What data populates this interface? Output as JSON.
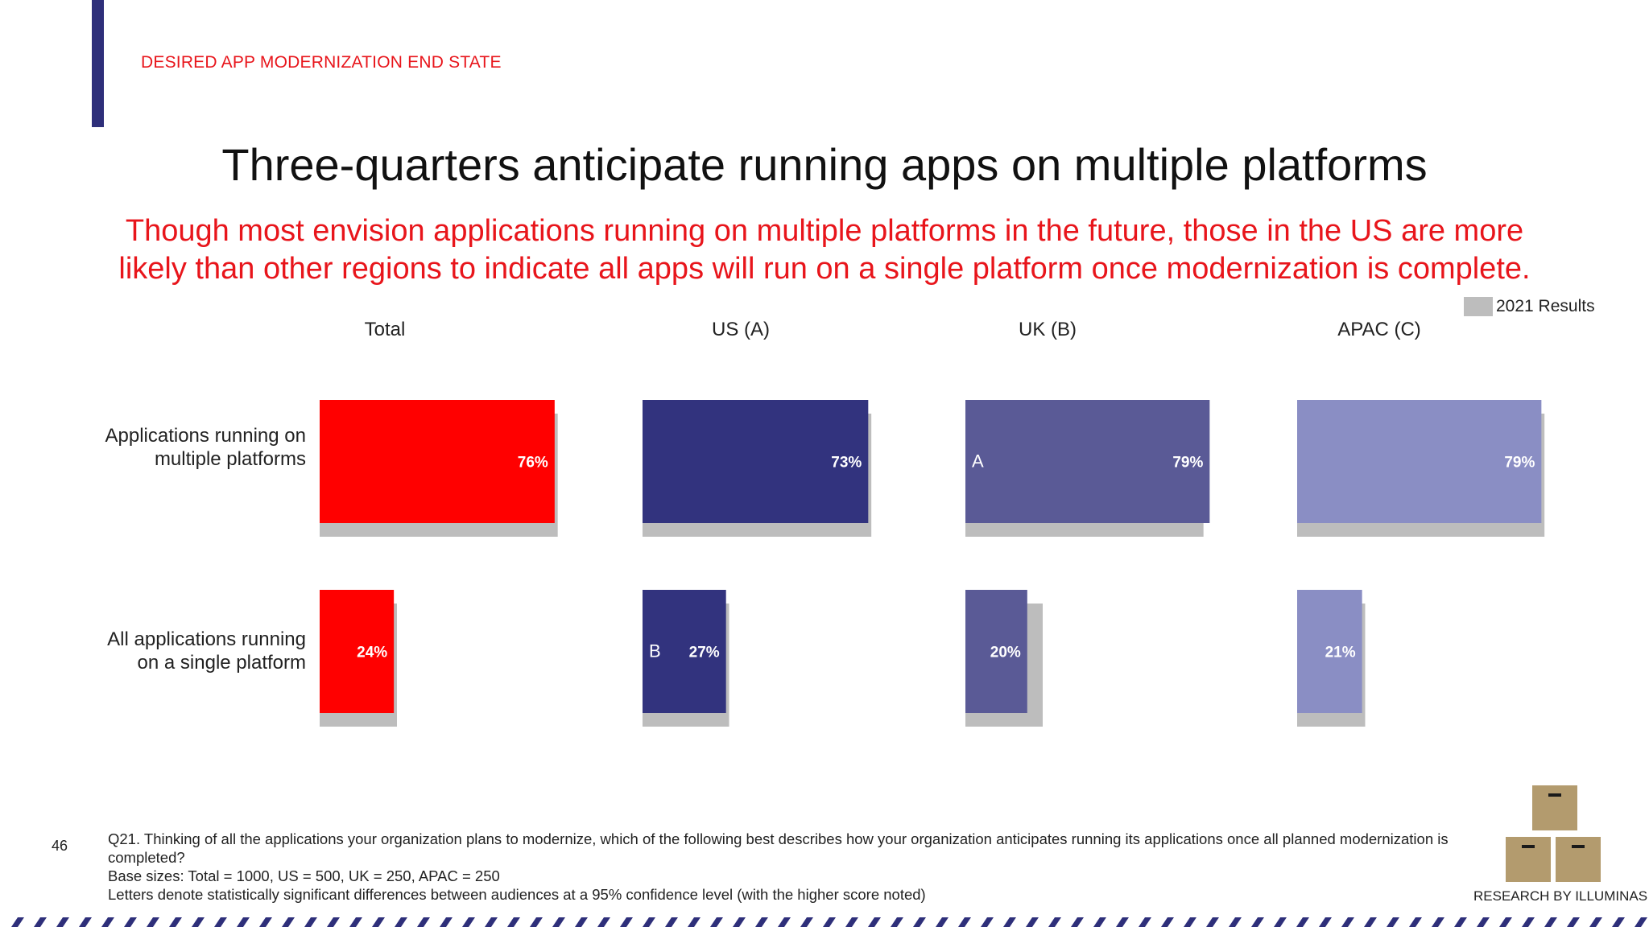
{
  "header": {
    "section_label": "DESIRED APP MODERNIZATION END STATE",
    "headline": "Three-quarters anticipate running apps on multiple platforms",
    "subtitle_line1": "Though most envision applications running on multiple platforms in the future, those in the US are more",
    "subtitle_line2": "likely than other regions to indicate all apps will run on a single platform once modernization is complete."
  },
  "legend": {
    "label": "2021 Results",
    "swatch_color": "#bdbdbd"
  },
  "chart_data": {
    "type": "bar",
    "orientation": "horizontal",
    "unit": "%",
    "groups": [
      "Total",
      "US (A)",
      "UK (B)",
      "APAC (C)"
    ],
    "categories": [
      "Applications running on multiple platforms",
      "All applications running on a single platform"
    ],
    "category_lines": [
      [
        "Applications running on",
        "multiple platforms"
      ],
      [
        "All applications running",
        "on a single platform"
      ]
    ],
    "series": [
      {
        "group": "Total",
        "color": "#ff0000",
        "values": [
          76,
          24
        ],
        "labels": [
          "76%",
          "24%"
        ],
        "sig_letters": [
          "",
          ""
        ],
        "results_2021": [
          77,
          25
        ]
      },
      {
        "group": "US (A)",
        "color": "#32337e",
        "values": [
          73,
          27
        ],
        "labels": [
          "73%",
          "27%"
        ],
        "sig_letters": [
          "",
          "B"
        ],
        "results_2021": [
          74,
          28
        ]
      },
      {
        "group": "UK (B)",
        "color": "#5a5a96",
        "values": [
          79,
          20
        ],
        "labels": [
          "79%",
          "20%"
        ],
        "sig_letters": [
          "A",
          ""
        ],
        "results_2021": [
          77,
          25
        ]
      },
      {
        "group": "APAC (C)",
        "color": "#8a8ec4",
        "values": [
          79,
          21
        ],
        "labels": [
          "79%",
          "21%"
        ],
        "sig_letters": [
          "",
          ""
        ],
        "results_2021": [
          80,
          22
        ]
      }
    ],
    "legend": "top-right",
    "grid": false
  },
  "footer": {
    "page_number": "46",
    "question": "Q21. Thinking of all the applications your organization plans to modernize, which of the following best describes how your organization anticipates running its applications once all planned modernization is completed?",
    "base_sizes": "Base sizes: Total = 1000, US = 500, UK = 250, APAC = 250",
    "significance_note": "Letters denote statistically significant differences between audiences at a 95% confidence level (with the higher score noted)",
    "brand": "RESEARCH BY ILLUMINAS"
  },
  "colors": {
    "accent": "#e8151b",
    "navy": "#2e2f7a",
    "box": "#b39b6e"
  }
}
